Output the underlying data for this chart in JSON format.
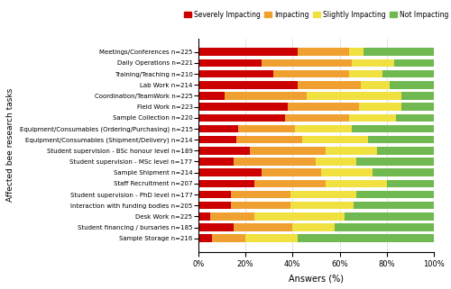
{
  "categories": [
    "Sample Storage n=216",
    "Student financing / bursaries n=185",
    "Desk Work n=225",
    "Interaction with funding bodies n=205",
    "Student supervision - PhD level n=177",
    "Staff Recruitment n=207",
    "Sample Shipment n=214",
    "Student supervision - MSc level n=177",
    "Student supervision - BSc honour level n=189",
    "Equipment/Consumables (Shipment/Delivery) n=214",
    "Equipment/Consumables (Ordering/Purchasing) n=215",
    "Sample Collection n=220",
    "Field Work n=223",
    "Coordination/TeamWork n=225",
    "Lab Work n=214",
    "Training/Teaching n=210",
    "Daily Operations n=221",
    "Meetings/Conferences n=225"
  ],
  "severely_impacting": [
    6,
    15,
    5,
    14,
    14,
    24,
    27,
    15,
    22,
    16,
    17,
    37,
    38,
    11,
    42,
    32,
    27,
    42
  ],
  "impacting": [
    14,
    25,
    19,
    25,
    25,
    30,
    25,
    35,
    32,
    28,
    24,
    27,
    30,
    35,
    27,
    32,
    38,
    22
  ],
  "slightly_impacting": [
    22,
    18,
    38,
    27,
    28,
    26,
    22,
    17,
    22,
    28,
    24,
    20,
    18,
    40,
    12,
    14,
    18,
    6
  ],
  "not_impacting": [
    58,
    42,
    38,
    34,
    33,
    20,
    26,
    33,
    24,
    28,
    35,
    16,
    14,
    14,
    19,
    22,
    17,
    30
  ],
  "colors": [
    "#cc0000",
    "#f0a030",
    "#f0e040",
    "#70b850"
  ],
  "legend_labels": [
    "Severely Impacting",
    "Impacting",
    "Slightly Impacting",
    "Not Impacting"
  ],
  "xlabel": "Answers (%)",
  "ylabel": "Affected bee research tasks",
  "bar_height": 0.7
}
